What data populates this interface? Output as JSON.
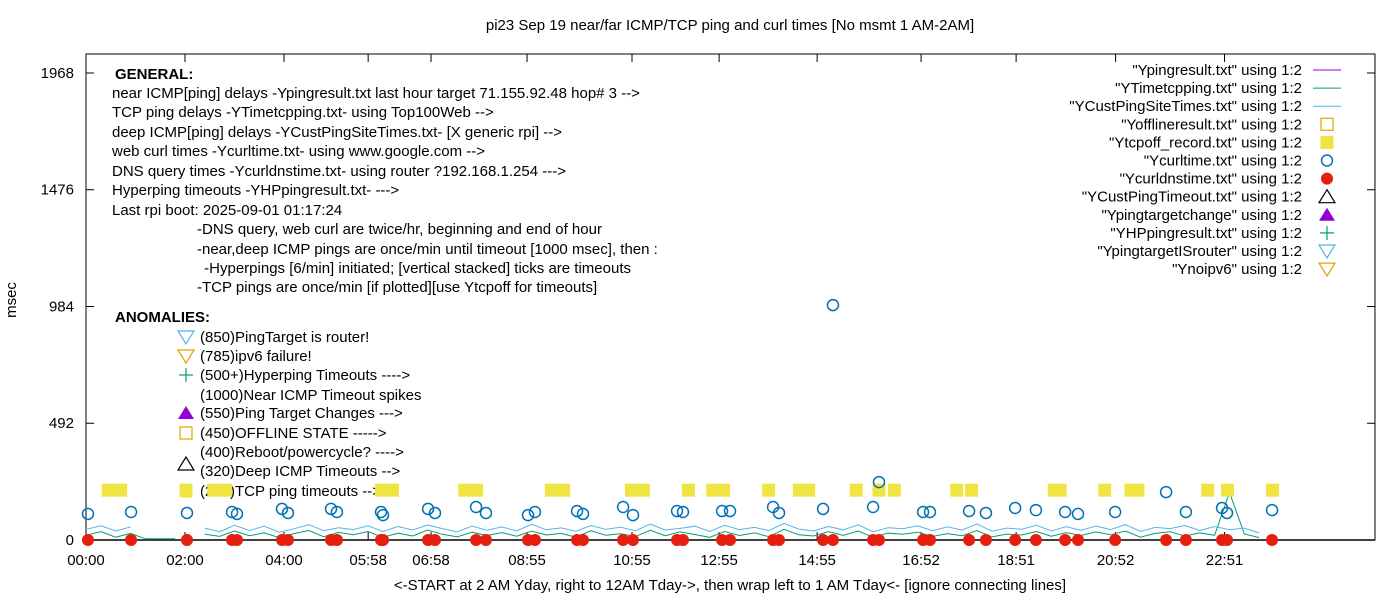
{
  "chart_data": {
    "type": "scatter",
    "title": "pi23 Sep 19  near/far ICMP/TCP ping and curl times  [No msmt 1 AM-2AM]",
    "xlabel": "<-START at 2 AM Yday, right to 12AM  Tday->, then wrap left to 1 AM Tday<- [ignore connecting lines]",
    "ylabel": "msec",
    "xlim": [
      0,
      26.04
    ],
    "ylim": [
      0,
      2048
    ],
    "grid": false,
    "legend_placement": "top-right",
    "yticks": [
      0,
      492,
      984,
      1476,
      1968
    ],
    "xticks": [
      {
        "label": "00:00",
        "x": 0
      },
      {
        "label": "02:00",
        "x": 2.0
      },
      {
        "label": "04:00",
        "x": 4.0
      },
      {
        "label": "05:58",
        "x": 5.7
      },
      {
        "label": "06:58",
        "x": 6.97
      },
      {
        "label": "08:55",
        "x": 8.91
      },
      {
        "label": "10:55",
        "x": 11.03
      },
      {
        "label": "12:55",
        "x": 12.79
      },
      {
        "label": "14:55",
        "x": 14.77
      },
      {
        "label": "16:52",
        "x": 16.87
      },
      {
        "label": "18:51",
        "x": 18.79
      },
      {
        "label": "20:52",
        "x": 20.8
      },
      {
        "label": "22:51",
        "x": 23.0
      }
    ],
    "series": [
      {
        "name": "\"Ypingresult.txt\" using 1:2",
        "style": "line",
        "color": "#9400d3",
        "x_step": 0.3,
        "values": []
      },
      {
        "name": "\"YTimetcpping.txt\" using 1:2",
        "style": "line",
        "color": "#009e73",
        "x_step": 0.3,
        "values": [
          20,
          35,
          12,
          28,
          5,
          5,
          5,
          null,
          25,
          15,
          38,
          18,
          30,
          10,
          27,
          40,
          14,
          32,
          22,
          36,
          11,
          29,
          17,
          42,
          24,
          13,
          33,
          19,
          31,
          16,
          37,
          21,
          28,
          12,
          39,
          20,
          26,
          15,
          41,
          18,
          34,
          23,
          11,
          36,
          19,
          30,
          14,
          45,
          22,
          17,
          35,
          20,
          38,
          12,
          29,
          24,
          33,
          15,
          27,
          18,
          40,
          13,
          25,
          21,
          36,
          16,
          31,
          19,
          34,
          22,
          38,
          12,
          28,
          35,
          17,
          30,
          20,
          200,
          26,
          10
        ]
      },
      {
        "name": "\"YCustPingSiteTimes.txt\" using 1:2",
        "style": "line",
        "color": "#56b4e9",
        "x_step": 0.3,
        "values": [
          45,
          60,
          38,
          55,
          null,
          null,
          null,
          null,
          50,
          35,
          62,
          40,
          58,
          33,
          47,
          65,
          39,
          52,
          44,
          60,
          36,
          57,
          42,
          63,
          48,
          34,
          59,
          41,
          55,
          38,
          66,
          43,
          51,
          37,
          61,
          45,
          54,
          39,
          67,
          42,
          49,
          58,
          36,
          62,
          44,
          53,
          40,
          70,
          46,
          38,
          57,
          43,
          64,
          35,
          52,
          47,
          60,
          39,
          55,
          42,
          68,
          37,
          50,
          45,
          62,
          38,
          56,
          41,
          59,
          44,
          65,
          36,
          53,
          48,
          61,
          40,
          57,
          43,
          50,
          30
        ]
      },
      {
        "name": "\"Yofflineresult.txt\" using 1:2",
        "style": "open-square",
        "color": "#e69f00",
        "points": []
      },
      {
        "name": "\"Ytcpoff_record.txt\" using 1:2",
        "style": "filled-square",
        "color": "#f0e442",
        "points": [
          [
            0.45,
            210
          ],
          [
            0.7,
            210
          ],
          [
            2.02,
            210
          ],
          [
            2.58,
            210
          ],
          [
            2.82,
            210
          ],
          [
            5.97,
            210
          ],
          [
            6.19,
            210
          ],
          [
            7.65,
            210
          ],
          [
            7.89,
            210
          ],
          [
            9.4,
            210
          ],
          [
            9.65,
            210
          ],
          [
            11.02,
            210
          ],
          [
            11.26,
            210
          ],
          [
            12.17,
            210
          ],
          [
            12.66,
            210
          ],
          [
            12.88,
            210
          ],
          [
            13.79,
            210
          ],
          [
            14.41,
            210
          ],
          [
            14.6,
            210
          ],
          [
            15.56,
            210
          ],
          [
            16.02,
            210
          ],
          [
            16.33,
            210
          ],
          [
            17.59,
            210
          ],
          [
            17.89,
            210
          ],
          [
            19.56,
            210
          ],
          [
            19.68,
            210
          ],
          [
            20.58,
            210
          ],
          [
            21.11,
            210
          ],
          [
            21.25,
            210
          ],
          [
            22.66,
            210
          ],
          [
            23.06,
            210
          ],
          [
            23.97,
            210
          ]
        ]
      },
      {
        "name": "\"Ycurltime.txt\" using 1:2",
        "style": "open-circle",
        "color": "#0072b2",
        "points": [
          [
            0.04,
            110
          ],
          [
            0.91,
            118
          ],
          [
            2.04,
            114
          ],
          [
            2.95,
            118
          ],
          [
            3.05,
            110
          ],
          [
            3.96,
            131
          ],
          [
            4.08,
            114
          ],
          [
            4.95,
            131
          ],
          [
            5.07,
            118
          ],
          [
            5.96,
            118
          ],
          [
            6.0,
            105
          ],
          [
            6.91,
            131
          ],
          [
            7.05,
            114
          ],
          [
            7.88,
            139
          ],
          [
            8.08,
            114
          ],
          [
            8.93,
            105
          ],
          [
            9.07,
            118
          ],
          [
            9.92,
            122
          ],
          [
            10.04,
            110
          ],
          [
            10.85,
            139
          ],
          [
            11.05,
            105
          ],
          [
            11.94,
            122
          ],
          [
            12.06,
            118
          ],
          [
            12.85,
            122
          ],
          [
            13.01,
            122
          ],
          [
            13.88,
            139
          ],
          [
            14.0,
            114
          ],
          [
            14.89,
            131
          ],
          [
            15.09,
            990
          ],
          [
            15.9,
            139
          ],
          [
            16.02,
            244
          ],
          [
            16.91,
            118
          ],
          [
            17.05,
            118
          ],
          [
            17.84,
            122
          ],
          [
            18.18,
            114
          ],
          [
            18.77,
            135
          ],
          [
            19.19,
            126
          ],
          [
            19.78,
            118
          ],
          [
            20.04,
            110
          ],
          [
            20.79,
            118
          ],
          [
            21.82,
            202
          ],
          [
            22.22,
            118
          ],
          [
            22.95,
            135
          ],
          [
            23.05,
            114
          ],
          [
            23.96,
            126
          ]
        ]
      },
      {
        "name": "\"Ycurldnstime.txt\" using 1:2",
        "style": "filled-circle",
        "color": "#e51e10",
        "points": [
          [
            0.04,
            0
          ],
          [
            0.91,
            0
          ],
          [
            2.04,
            0
          ],
          [
            2.95,
            0
          ],
          [
            3.05,
            0
          ],
          [
            3.96,
            0
          ],
          [
            4.08,
            0
          ],
          [
            4.95,
            0
          ],
          [
            5.07,
            0
          ],
          [
            5.96,
            0
          ],
          [
            6.0,
            0
          ],
          [
            6.91,
            0
          ],
          [
            7.05,
            0
          ],
          [
            7.88,
            0
          ],
          [
            8.08,
            0
          ],
          [
            8.93,
            0
          ],
          [
            9.07,
            0
          ],
          [
            9.92,
            0
          ],
          [
            10.04,
            0
          ],
          [
            10.85,
            0
          ],
          [
            11.05,
            0
          ],
          [
            11.94,
            0
          ],
          [
            12.06,
            0
          ],
          [
            12.85,
            0
          ],
          [
            13.01,
            0
          ],
          [
            13.88,
            0
          ],
          [
            14.0,
            0
          ],
          [
            14.89,
            0
          ],
          [
            15.09,
            0
          ],
          [
            15.9,
            0
          ],
          [
            16.02,
            0
          ],
          [
            16.91,
            0
          ],
          [
            17.05,
            0
          ],
          [
            17.84,
            0
          ],
          [
            18.18,
            0
          ],
          [
            18.77,
            0
          ],
          [
            19.19,
            0
          ],
          [
            19.78,
            0
          ],
          [
            20.04,
            0
          ],
          [
            20.79,
            0
          ],
          [
            21.82,
            0
          ],
          [
            22.22,
            0
          ],
          [
            22.95,
            0
          ],
          [
            23.05,
            0
          ],
          [
            23.96,
            0
          ]
        ]
      },
      {
        "name": "\"YCustPingTimeout.txt\" using 1:2",
        "style": "open-triangle-up",
        "color": "#000000",
        "points": []
      },
      {
        "name": "\"Ypingtargetchange\" using 1:2",
        "style": "filled-triangle-up",
        "color": "#9400d3",
        "points": []
      },
      {
        "name": "\"YHPpingresult.txt\" using 1:2",
        "style": "plus",
        "color": "#009e73",
        "points": []
      },
      {
        "name": "\"YpingtargetISrouter\" using 1:2",
        "style": "open-triangle-down",
        "color": "#56b4e9",
        "points": []
      },
      {
        "name": "\"Ynoipv6\" using 1:2",
        "style": "open-triangle-down",
        "color": "#e69f00",
        "points": []
      }
    ],
    "annotations": {
      "general_heading": "GENERAL:",
      "general_lines": [
        "near ICMP[ping] delays -Ypingresult.txt last hour target 71.155.92.48 hop# 3 -->",
        "TCP ping delays -YTimetcpping.txt- using Top100Web -->",
        "deep ICMP[ping] delays -YCustPingSiteTimes.txt- [X generic rpi] -->",
        "web curl times -Ycurltime.txt- using www.google.com -->",
        "DNS query times -Ycurldnstime.txt- using router ?192.168.1.254 --->",
        "Hyperping timeouts -YHPpingresult.txt- --->",
        "Last rpi boot: 2025-09-01 01:17:24"
      ],
      "notes": [
        "-DNS query, web curl are twice/hr, beginning and end of hour",
        "-near,deep ICMP pings are once/min until timeout [1000 msec], then :",
        " -Hyperpings [6/min] initiated; [vertical stacked] ticks are timeouts",
        "-TCP pings are once/min [if plotted][use Ytcpoff for timeouts]"
      ],
      "anomalies_heading": "ANOMALIES:",
      "anomalies": [
        {
          "text": "(850)PingTarget is router!",
          "symbol": "open-triangle-down",
          "color": "#56b4e9"
        },
        {
          "text": "(785)ipv6 failure!",
          "symbol": "open-triangle-down",
          "color": "#e69f00"
        },
        {
          "text": "(500+)Hyperping Timeouts ---->",
          "symbol": "plus",
          "color": "#009e73"
        },
        {
          "text": "(1000)Near ICMP Timeout spikes",
          "symbol": "",
          "color": ""
        },
        {
          "text": "(550)Ping Target Changes --->",
          "symbol": "filled-triangle-up",
          "color": "#9400d3"
        },
        {
          "text": "(450)OFFLINE STATE ----->",
          "symbol": "open-square",
          "color": "#e69f00"
        },
        {
          "text": "(400)Reboot/powercycle? ---->",
          "symbol": "",
          "color": ""
        },
        {
          "text": "(320)Deep ICMP Timeouts -->",
          "symbol": "open-triangle-up",
          "color": "#000000"
        },
        {
          "text": "(210)TCP ping timeouts -->",
          "symbol": "filled-square",
          "color": "#f0e442"
        }
      ]
    }
  }
}
